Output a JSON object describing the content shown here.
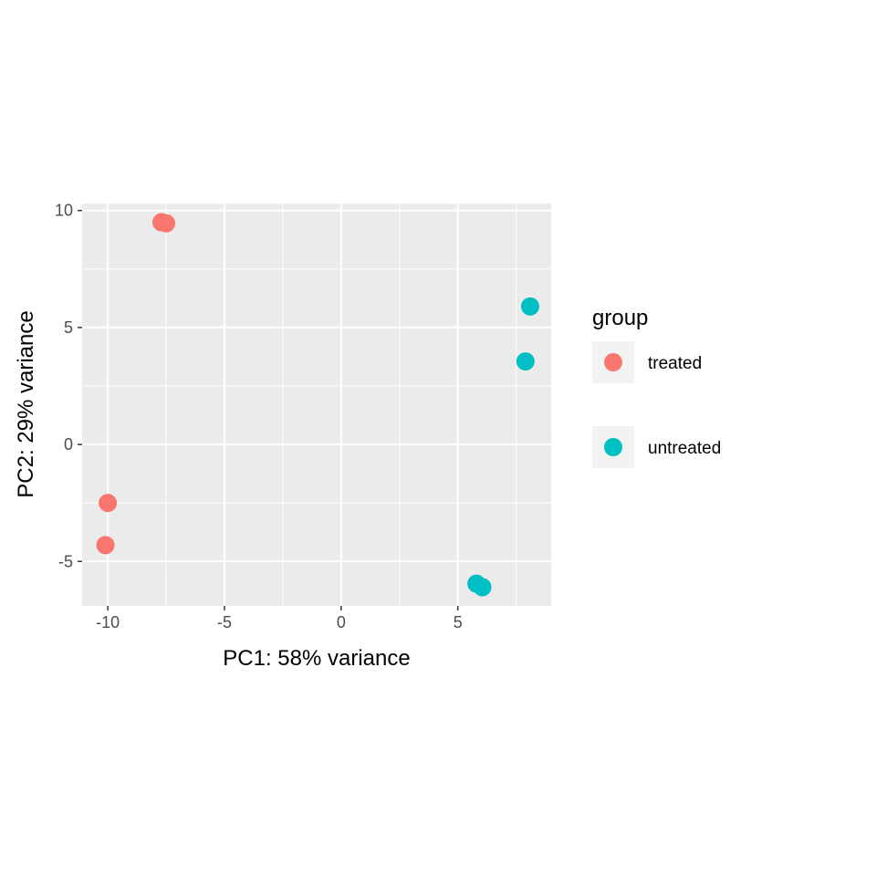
{
  "chart_data": {
    "type": "scatter",
    "xlabel": "PC1: 58% variance",
    "ylabel": "PC2: 29% variance",
    "xlim": [
      -11.1,
      9.0
    ],
    "ylim": [
      -6.9,
      10.3
    ],
    "x_ticks": [
      -10,
      -5,
      0,
      5
    ],
    "x_tick_labels": [
      "-10",
      "-5",
      "0",
      "5"
    ],
    "y_ticks": [
      -5,
      0,
      5,
      10
    ],
    "y_tick_labels": [
      "-5",
      "0",
      "5",
      "10"
    ],
    "grid": true,
    "legend": {
      "title": "group",
      "placement": "right"
    },
    "series": [
      {
        "name": "treated",
        "color": "#F8766D",
        "points": [
          {
            "x": -7.7,
            "y": 9.5
          },
          {
            "x": -7.5,
            "y": 9.45
          },
          {
            "x": -10.0,
            "y": -2.5
          },
          {
            "x": -10.1,
            "y": -4.3
          }
        ]
      },
      {
        "name": "untreated",
        "color": "#00BFC4",
        "points": [
          {
            "x": 8.1,
            "y": 5.9
          },
          {
            "x": 7.9,
            "y": 3.55
          },
          {
            "x": 5.8,
            "y": -5.95
          },
          {
            "x": 6.05,
            "y": -6.1
          }
        ]
      }
    ]
  }
}
